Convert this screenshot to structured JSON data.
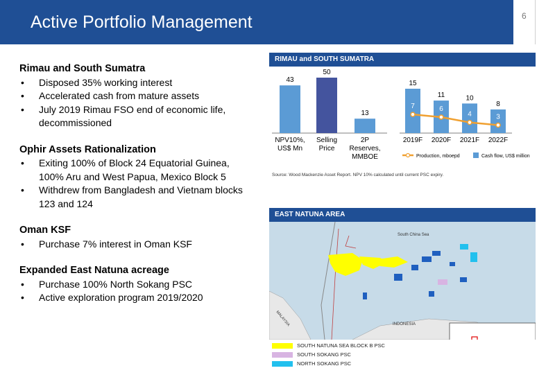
{
  "page": {
    "title": "Active Portfolio Management",
    "page_number": "6"
  },
  "left": {
    "sections": [
      {
        "heading": "Rimau and South Sumatra",
        "bullets": [
          "Disposed 35% working interest",
          "Accelerated cash from mature assets",
          "July 2019 Rimau FSO end of economic life, decommissioned"
        ]
      },
      {
        "heading": "Ophir Assets Rationalization",
        "bullets": [
          "Exiting 100% of Block 24 Equatorial Guinea, 100% Aru and West Papua, Mexico Block 5",
          "Withdrew from Bangladesh and Vietnam blocks 123 and 124"
        ]
      },
      {
        "heading": "Oman KSF",
        "bullets": [
          "Purchase 7% interest in Oman KSF"
        ]
      },
      {
        "heading": "Expanded East Natuna acreage",
        "bullets": [
          "Purchase 100% North Sokang PSC",
          "Active exploration program 2019/2020"
        ]
      }
    ]
  },
  "rimau_panel": {
    "header": "RIMAU and SOUTH SUMATRA",
    "source": "Source: Wood Mackenzie Asset Report. NPV 10% calculated until current PSC expiry."
  },
  "chart_data": [
    {
      "type": "bar",
      "categories": [
        "NPV10%, US$ Mn",
        "Selling Price",
        "2P Reserves, MMBOE"
      ],
      "values": [
        43,
        50,
        13
      ],
      "colors": [
        "#5b9bd5",
        "#44549e",
        "#5b9bd5"
      ]
    },
    {
      "type": "bar",
      "categories": [
        "2019F",
        "2020F",
        "2021F",
        "2022F"
      ],
      "series": [
        {
          "name": "Cash flow, US$ million",
          "type": "bar",
          "values": [
            15,
            11,
            10,
            8
          ],
          "color": "#5b9bd5"
        },
        {
          "name": "Production, mboepd",
          "type": "line",
          "values": [
            7,
            6,
            4,
            3
          ],
          "color": "#f0a030"
        }
      ]
    }
  ],
  "natuna_panel": {
    "header": "EAST NATUNA AREA",
    "map_labels": {
      "sea": "South China Sea",
      "indonesia": "INDONESIA",
      "malaysia": "MALAYSIA"
    },
    "legend": [
      {
        "label": "SOUTH NATUNA SEA BLOCK B PSC",
        "color": "#ffff00"
      },
      {
        "label": "SOUTH SOKANG PSC",
        "color": "#d8b4e2"
      },
      {
        "label": "NORTH SOKANG PSC",
        "color": "#22c0ee"
      }
    ]
  }
}
